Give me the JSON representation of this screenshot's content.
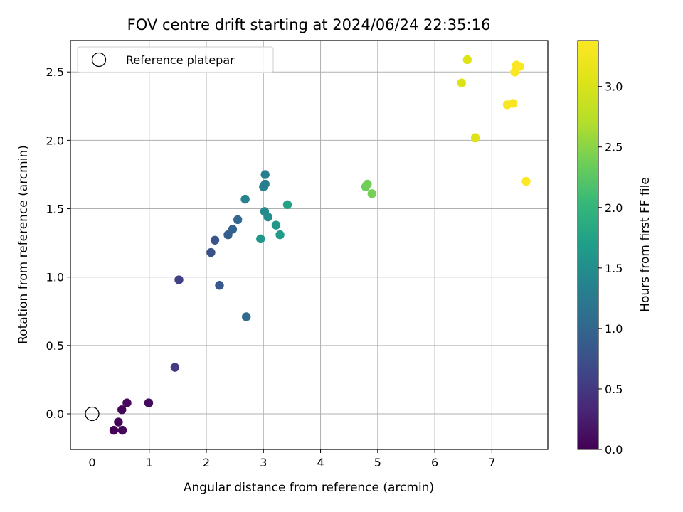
{
  "chart_data": {
    "type": "scatter",
    "title": "FOV centre drift starting at 2024/06/24 22:35:16",
    "xlabel": "Angular distance from reference (arcmin)",
    "ylabel": "Rotation from reference (arcmin)",
    "xlim": [
      -0.38,
      7.98
    ],
    "ylim": [
      -0.26,
      2.73
    ],
    "xticks": [
      0,
      1,
      2,
      3,
      4,
      5,
      6,
      7
    ],
    "yticks": [
      0.0,
      0.5,
      1.0,
      1.5,
      2.0,
      2.5
    ],
    "xtick_labels": [
      "0",
      "1",
      "2",
      "3",
      "4",
      "5",
      "6",
      "7"
    ],
    "ytick_labels": [
      "0.0",
      "0.5",
      "1.0",
      "1.5",
      "2.0",
      "2.5"
    ],
    "grid": true,
    "legend": {
      "position": "top-left",
      "entries": [
        "Reference platepar"
      ]
    },
    "reference_point": {
      "x": 0,
      "y": 0,
      "label": "Reference platepar"
    },
    "colorbar": {
      "label": "Hours from first FF file",
      "colormap": "viridis",
      "range": [
        0.0,
        3.38
      ],
      "ticks": [
        0.0,
        0.5,
        1.0,
        1.5,
        2.0,
        2.5,
        3.0
      ],
      "tick_labels": [
        "0.0",
        "0.5",
        "1.0",
        "1.5",
        "2.0",
        "2.5",
        "3.0"
      ]
    },
    "points": [
      {
        "x": 0.38,
        "y": -0.12,
        "hours": 0.02
      },
      {
        "x": 0.46,
        "y": -0.06,
        "hours": 0.03
      },
      {
        "x": 0.52,
        "y": 0.03,
        "hours": 0.04
      },
      {
        "x": 0.53,
        "y": -0.12,
        "hours": 0.05
      },
      {
        "x": 0.61,
        "y": 0.08,
        "hours": 0.06
      },
      {
        "x": 0.99,
        "y": 0.08,
        "hours": 0.08
      },
      {
        "x": 1.45,
        "y": 0.34,
        "hours": 0.55
      },
      {
        "x": 1.52,
        "y": 0.98,
        "hours": 0.6
      },
      {
        "x": 2.08,
        "y": 1.18,
        "hours": 0.75
      },
      {
        "x": 2.15,
        "y": 1.27,
        "hours": 0.8
      },
      {
        "x": 2.23,
        "y": 0.94,
        "hours": 0.85
      },
      {
        "x": 2.38,
        "y": 1.31,
        "hours": 0.9
      },
      {
        "x": 2.46,
        "y": 1.35,
        "hours": 0.95
      },
      {
        "x": 2.55,
        "y": 1.42,
        "hours": 1.0
      },
      {
        "x": 2.7,
        "y": 0.71,
        "hours": 1.05
      },
      {
        "x": 2.68,
        "y": 1.57,
        "hours": 1.35
      },
      {
        "x": 2.95,
        "y": 1.28,
        "hours": 1.6
      },
      {
        "x": 3.0,
        "y": 1.66,
        "hours": 1.35
      },
      {
        "x": 3.02,
        "y": 1.48,
        "hours": 1.45
      },
      {
        "x": 3.03,
        "y": 1.68,
        "hours": 1.3
      },
      {
        "x": 3.03,
        "y": 1.75,
        "hours": 1.3
      },
      {
        "x": 3.08,
        "y": 1.44,
        "hours": 1.5
      },
      {
        "x": 3.22,
        "y": 1.38,
        "hours": 1.6
      },
      {
        "x": 3.29,
        "y": 1.31,
        "hours": 1.65
      },
      {
        "x": 3.42,
        "y": 1.53,
        "hours": 1.75
      },
      {
        "x": 4.79,
        "y": 1.66,
        "hours": 2.35
      },
      {
        "x": 4.82,
        "y": 1.68,
        "hours": 2.38
      },
      {
        "x": 4.9,
        "y": 1.61,
        "hours": 2.4
      },
      {
        "x": 6.47,
        "y": 2.42,
        "hours": 3.05
      },
      {
        "x": 6.57,
        "y": 2.59,
        "hours": 3.05
      },
      {
        "x": 6.71,
        "y": 2.02,
        "hours": 3.05
      },
      {
        "x": 7.27,
        "y": 2.26,
        "hours": 3.32
      },
      {
        "x": 7.37,
        "y": 2.27,
        "hours": 3.33
      },
      {
        "x": 7.4,
        "y": 2.5,
        "hours": 3.34
      },
      {
        "x": 7.43,
        "y": 2.55,
        "hours": 3.35
      },
      {
        "x": 7.49,
        "y": 2.54,
        "hours": 3.36
      },
      {
        "x": 7.6,
        "y": 1.7,
        "hours": 3.38
      }
    ]
  }
}
